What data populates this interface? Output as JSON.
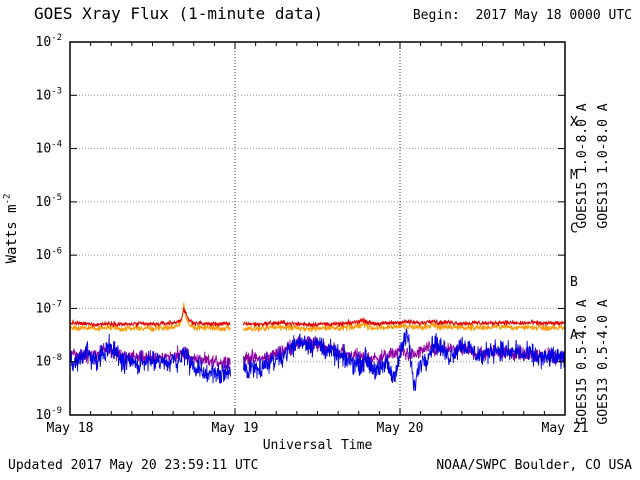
{
  "chart_data": {
    "type": "line",
    "title": "GOES Xray Flux (1-minute data)",
    "annotations": {
      "begin": "Begin:  2017 May 18 0000 UTC",
      "updated": "Updated 2017 May 20 23:59:11 UTC",
      "source": "NOAA/SWPC Boulder, CO USA"
    },
    "x_axis": {
      "label": "Universal Time",
      "unit": "hours since 2017-05-18 00:00 UTC",
      "min_hours": 0,
      "max_hours": 72,
      "ticks": [
        {
          "hours": 0,
          "label": "May 18"
        },
        {
          "hours": 24,
          "label": "May 19"
        },
        {
          "hours": 48,
          "label": "May 20"
        },
        {
          "hours": 72,
          "label": "May 21"
        }
      ],
      "minor_tick_step_hours": 3,
      "day_gridlines_hours": [
        24,
        48
      ]
    },
    "y_axis": {
      "label": "Watts m^-2",
      "scale": "log10",
      "min_exp": -9,
      "max_exp": -2,
      "tick_exponents": [
        -2,
        -3,
        -4,
        -5,
        -6,
        -7,
        -8,
        -9
      ],
      "grid": true
    },
    "flare_classes": [
      {
        "label": "X",
        "mid_exp": -3.5
      },
      {
        "label": "M",
        "mid_exp": -4.5
      },
      {
        "label": "C",
        "mid_exp": -5.5
      },
      {
        "label": "B",
        "mid_exp": -6.5
      },
      {
        "label": "A",
        "mid_exp": -7.5
      }
    ],
    "data_gaps_hours": [
      [
        23.4,
        25.2
      ]
    ],
    "series": [
      {
        "name": "GOES15 1.0-8.0 A",
        "color": "#e00000",
        "noise_log10": 0.022,
        "anchors_hour_log10flux": [
          [
            0,
            -7.27
          ],
          [
            2,
            -7.29
          ],
          [
            4,
            -7.3
          ],
          [
            6,
            -7.28
          ],
          [
            8,
            -7.3
          ],
          [
            10,
            -7.29
          ],
          [
            12,
            -7.3
          ],
          [
            14,
            -7.28
          ],
          [
            15.5,
            -7.26
          ],
          [
            16.2,
            -7.2
          ],
          [
            16.55,
            -7.0
          ],
          [
            16.8,
            -7.1
          ],
          [
            17.3,
            -7.22
          ],
          [
            18,
            -7.27
          ],
          [
            20,
            -7.29
          ],
          [
            22,
            -7.29
          ],
          [
            23.4,
            -7.3
          ],
          [
            25.2,
            -7.28
          ],
          [
            27,
            -7.3
          ],
          [
            29,
            -7.28
          ],
          [
            31,
            -7.27
          ],
          [
            33,
            -7.29
          ],
          [
            35,
            -7.3
          ],
          [
            37,
            -7.29
          ],
          [
            39,
            -7.3
          ],
          [
            41,
            -7.27
          ],
          [
            42.8,
            -7.22
          ],
          [
            43.5,
            -7.27
          ],
          [
            45,
            -7.29
          ],
          [
            47,
            -7.27
          ],
          [
            49,
            -7.25
          ],
          [
            51,
            -7.28
          ],
          [
            52.8,
            -7.22
          ],
          [
            53.5,
            -7.27
          ],
          [
            55,
            -7.26
          ],
          [
            57,
            -7.28
          ],
          [
            59,
            -7.27
          ],
          [
            61,
            -7.28
          ],
          [
            63,
            -7.26
          ],
          [
            65,
            -7.28
          ],
          [
            67,
            -7.27
          ],
          [
            69,
            -7.28
          ],
          [
            71,
            -7.28
          ],
          [
            72,
            -7.28
          ]
        ]
      },
      {
        "name": "GOES13 1.0-8.0 A",
        "color": "#ff9900",
        "noise_log10": 0.028,
        "anchors_hour_log10flux": [
          [
            0,
            -7.35
          ],
          [
            2,
            -7.37
          ],
          [
            4,
            -7.38
          ],
          [
            6,
            -7.36
          ],
          [
            8,
            -7.38
          ],
          [
            10,
            -7.37
          ],
          [
            12,
            -7.38
          ],
          [
            14,
            -7.36
          ],
          [
            15.5,
            -7.34
          ],
          [
            16.2,
            -7.24
          ],
          [
            16.55,
            -6.93
          ],
          [
            16.8,
            -7.14
          ],
          [
            17.3,
            -7.3
          ],
          [
            18,
            -7.35
          ],
          [
            20,
            -7.37
          ],
          [
            22,
            -7.37
          ],
          [
            23.4,
            -7.38
          ],
          [
            25.2,
            -7.36
          ],
          [
            27,
            -7.38
          ],
          [
            29,
            -7.36
          ],
          [
            31,
            -7.35
          ],
          [
            33,
            -7.37
          ],
          [
            35,
            -7.38
          ],
          [
            37,
            -7.37
          ],
          [
            39,
            -7.38
          ],
          [
            41,
            -7.35
          ],
          [
            42.8,
            -7.3
          ],
          [
            43.5,
            -7.35
          ],
          [
            45,
            -7.37
          ],
          [
            47,
            -7.35
          ],
          [
            49,
            -7.33
          ],
          [
            51,
            -7.36
          ],
          [
            52.8,
            -7.3
          ],
          [
            53.5,
            -7.35
          ],
          [
            55,
            -7.34
          ],
          [
            57,
            -7.36
          ],
          [
            59,
            -7.35
          ],
          [
            61,
            -7.36
          ],
          [
            63,
            -7.34
          ],
          [
            65,
            -7.36
          ],
          [
            67,
            -7.35
          ],
          [
            69,
            -7.36
          ],
          [
            71,
            -7.36
          ],
          [
            72,
            -7.36
          ]
        ]
      },
      {
        "name": "GOES15 0.5-4.0 A",
        "color": "#0000e0",
        "noise_log10": 0.1,
        "anchors_hour_log10flux": [
          [
            0,
            -7.95
          ],
          [
            1,
            -8.02
          ],
          [
            2,
            -7.85
          ],
          [
            2.5,
            -7.7
          ],
          [
            3,
            -7.95
          ],
          [
            4,
            -8.0
          ],
          [
            5,
            -7.85
          ],
          [
            5.5,
            -7.7
          ],
          [
            6,
            -7.75
          ],
          [
            7,
            -7.95
          ],
          [
            8,
            -8.02
          ],
          [
            9,
            -7.98
          ],
          [
            10,
            -8.05
          ],
          [
            11,
            -8.0
          ],
          [
            12,
            -8.02
          ],
          [
            13,
            -7.98
          ],
          [
            14,
            -8.05
          ],
          [
            15,
            -8.0
          ],
          [
            16,
            -7.95
          ],
          [
            16.6,
            -7.82
          ],
          [
            17.2,
            -7.95
          ],
          [
            18,
            -8.1
          ],
          [
            19,
            -8.2
          ],
          [
            20,
            -8.25
          ],
          [
            21,
            -8.15
          ],
          [
            22,
            -8.3
          ],
          [
            23,
            -8.2
          ],
          [
            23.4,
            -8.25
          ],
          [
            25.2,
            -8.1
          ],
          [
            26,
            -8.15
          ],
          [
            27,
            -8.05
          ],
          [
            28,
            -8.12
          ],
          [
            29,
            -8.0
          ],
          [
            30,
            -7.95
          ],
          [
            31,
            -7.88
          ],
          [
            32,
            -7.75
          ],
          [
            33,
            -7.65
          ],
          [
            34,
            -7.6
          ],
          [
            35,
            -7.7
          ],
          [
            36,
            -7.65
          ],
          [
            37,
            -7.75
          ],
          [
            38,
            -7.82
          ],
          [
            39,
            -7.9
          ],
          [
            40,
            -7.95
          ],
          [
            41,
            -8.0
          ],
          [
            42,
            -8.05
          ],
          [
            43,
            -7.95
          ],
          [
            44,
            -8.1
          ],
          [
            45,
            -8.2
          ],
          [
            46,
            -8.0
          ],
          [
            47,
            -8.3
          ],
          [
            48,
            -7.9
          ],
          [
            48.6,
            -7.58
          ],
          [
            49.2,
            -7.55
          ],
          [
            49.6,
            -8.0
          ],
          [
            50,
            -8.5
          ],
          [
            50.4,
            -8.3
          ],
          [
            51,
            -8.0
          ],
          [
            52,
            -7.9
          ],
          [
            53,
            -7.62
          ],
          [
            54,
            -7.75
          ],
          [
            55,
            -7.9
          ],
          [
            56,
            -7.8
          ],
          [
            57,
            -7.68
          ],
          [
            58,
            -7.75
          ],
          [
            59,
            -7.85
          ],
          [
            60,
            -7.9
          ],
          [
            61,
            -7.8
          ],
          [
            62,
            -7.75
          ],
          [
            63,
            -7.8
          ],
          [
            64,
            -7.85
          ],
          [
            65,
            -7.78
          ],
          [
            66,
            -7.9
          ],
          [
            67,
            -7.85
          ],
          [
            68,
            -7.92
          ],
          [
            69,
            -7.95
          ],
          [
            70,
            -7.9
          ],
          [
            71,
            -7.95
          ],
          [
            72,
            -7.95
          ]
        ]
      },
      {
        "name": "GOES13 0.5-4.0 A",
        "color": "#9000a0",
        "noise_log10": 0.065,
        "anchors_hour_log10flux": [
          [
            0,
            -7.85
          ],
          [
            2,
            -7.9
          ],
          [
            4,
            -7.85
          ],
          [
            5,
            -7.75
          ],
          [
            6,
            -7.8
          ],
          [
            8,
            -7.9
          ],
          [
            10,
            -7.92
          ],
          [
            12,
            -7.95
          ],
          [
            14,
            -7.9
          ],
          [
            16,
            -7.85
          ],
          [
            17,
            -7.9
          ],
          [
            18,
            -7.95
          ],
          [
            20,
            -8.0
          ],
          [
            22,
            -8.0
          ],
          [
            23.4,
            -7.98
          ],
          [
            25.2,
            -7.95
          ],
          [
            26,
            -7.92
          ],
          [
            28,
            -7.95
          ],
          [
            30,
            -7.85
          ],
          [
            32,
            -7.72
          ],
          [
            34,
            -7.62
          ],
          [
            36,
            -7.68
          ],
          [
            38,
            -7.75
          ],
          [
            40,
            -7.85
          ],
          [
            42,
            -7.9
          ],
          [
            44,
            -7.95
          ],
          [
            46,
            -7.9
          ],
          [
            48,
            -7.8
          ],
          [
            50,
            -7.88
          ],
          [
            52,
            -7.75
          ],
          [
            54,
            -7.8
          ],
          [
            56,
            -7.75
          ],
          [
            58,
            -7.8
          ],
          [
            60,
            -7.85
          ],
          [
            62,
            -7.8
          ],
          [
            64,
            -7.85
          ],
          [
            66,
            -7.85
          ],
          [
            68,
            -7.9
          ],
          [
            70,
            -7.9
          ],
          [
            72,
            -7.9
          ]
        ]
      }
    ],
    "legend_position": "right-rotated",
    "colors": {
      "frame": "#000000",
      "h_grid": "#999999",
      "v_grid": "#333333",
      "background": "#ffffff"
    }
  }
}
